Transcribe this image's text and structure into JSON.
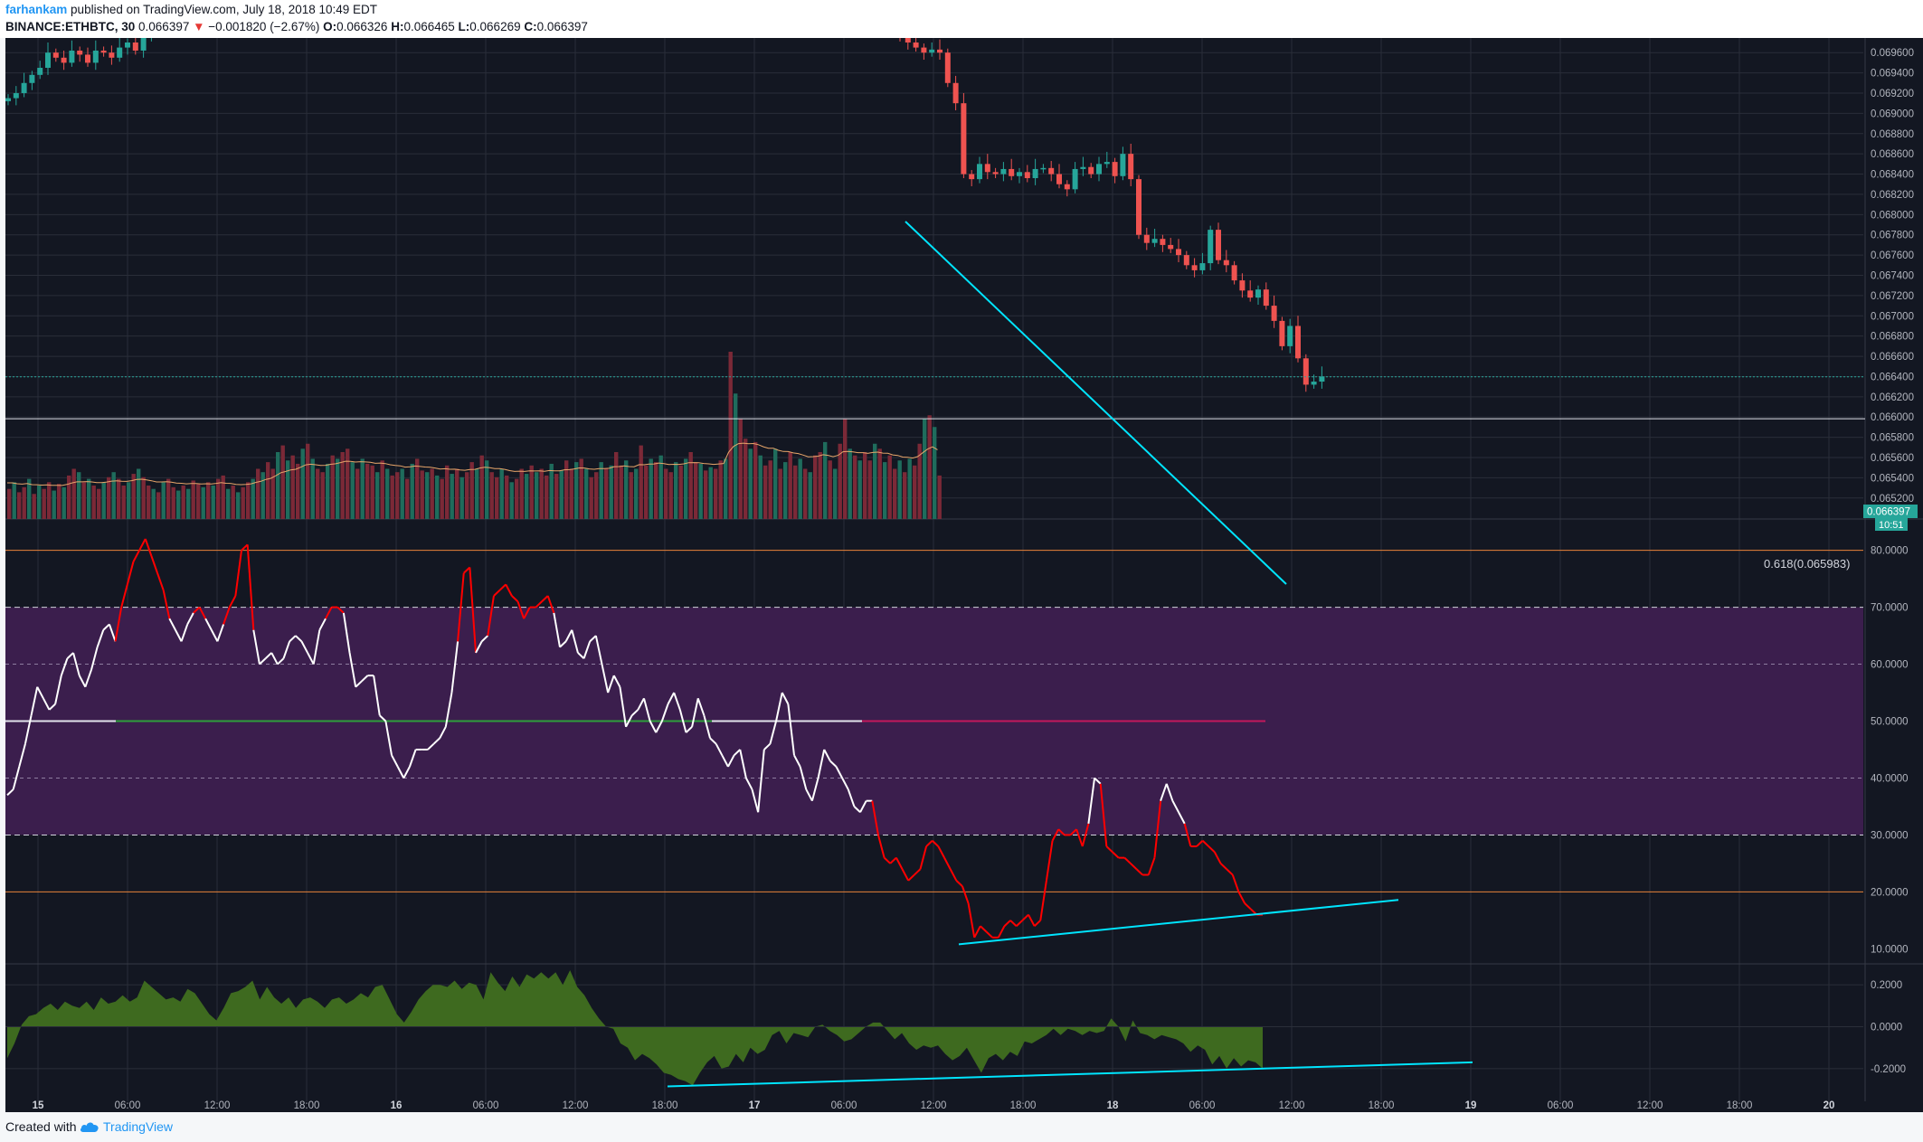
{
  "header": {
    "author": "farhankam",
    "published": "published on TradingView.com, July 18, 2018 10:49 EDT",
    "symbol": "BINANCE:ETHBTC, 30",
    "last": "0.066397",
    "change_arrow": "▼",
    "change": "−0.001820 (−2.67%)",
    "o_label": "O:",
    "o": "0.066326",
    "h_label": "H:",
    "h": "0.066465",
    "l_label": "L:",
    "l": "0.066269",
    "c_label": "C:",
    "c": "0.066397"
  },
  "footer": {
    "created_with": "Created with",
    "brand": "TradingView"
  },
  "colors": {
    "background": "#131722",
    "grid": "#2a2e39",
    "up": "#26a69a",
    "down": "#ef5350",
    "trendline": "#00e5ff",
    "rsi_band": "#3b1e4d",
    "osc_fill": "#3e6a1f",
    "rsi_line": "#ffffff",
    "rsi_hot": "#ff0000",
    "volume_ma": "#e8a66a"
  },
  "icons": {
    "brand_logo": "tradingview-cloud-icon"
  },
  "chart_data": [
    {
      "type": "candlestick",
      "pane": "price",
      "ylim": [
        0.0651,
        0.0697
      ],
      "yticks": [
        "0.069600",
        "0.069400",
        "0.069200",
        "0.069000",
        "0.068800",
        "0.068600",
        "0.068400",
        "0.068200",
        "0.068000",
        "0.067800",
        "0.067600",
        "0.067400",
        "0.067200",
        "0.067000",
        "0.066800",
        "0.066600",
        "0.066400",
        "0.066200",
        "0.066000",
        "0.065800",
        "0.065600",
        "0.065400",
        "0.065200"
      ],
      "xticks": [
        "15",
        "06:00",
        "12:00",
        "18:00",
        "16",
        "06:00",
        "12:00",
        "18:00",
        "17",
        "06:00",
        "12:00",
        "18:00",
        "18",
        "06:00",
        "12:00",
        "18:00",
        "19",
        "06:00",
        "12:00",
        "18:00",
        "20"
      ],
      "xticks_bold": [
        "15",
        "16",
        "17",
        "18",
        "19",
        "20"
      ],
      "last_price_label": "0.066397",
      "countdown_label": "10:51",
      "fib_label": "0.618(0.065983)",
      "fib_level": 0.065983,
      "early_close": [
        0.06915,
        0.0692,
        0.0693,
        0.06938,
        0.06945,
        0.0696,
        0.06955,
        0.0695,
        0.06962,
        0.06958,
        0.0695,
        0.06962,
        0.0696,
        0.06955,
        0.06965,
        0.0697,
        0.06962,
        0.06975,
        0.06985,
        0.0699
      ],
      "late_close": [
        0.06975,
        0.0697,
        0.06965,
        0.0696,
        0.06963,
        0.0696,
        0.0693,
        0.0691,
        0.0684,
        0.06835,
        0.0685,
        0.06842,
        0.0684,
        0.06845,
        0.06838,
        0.06842,
        0.06836,
        0.06845,
        0.06846,
        0.0684,
        0.0683,
        0.06825,
        0.06845,
        0.06847,
        0.0684,
        0.0685,
        0.06852,
        0.06838,
        0.0686,
        0.06835,
        0.0678,
        0.06772,
        0.06776,
        0.0677,
        0.06766,
        0.0676,
        0.0675,
        0.06745,
        0.06752,
        0.06785,
        0.06755,
        0.0675,
        0.06735,
        0.06725,
        0.06718,
        0.06726,
        0.0671,
        0.06695,
        0.0667,
        0.0669,
        0.06658,
        0.06632,
        0.06635,
        0.0664
      ]
    },
    {
      "type": "bar",
      "pane": "volume",
      "note_series": "volume with moving average",
      "values_relative": [
        0.18,
        0.22,
        0.16,
        0.19,
        0.24,
        0.15,
        0.2,
        0.18,
        0.22,
        0.17,
        0.21,
        0.19,
        0.26,
        0.3,
        0.28,
        0.22,
        0.24,
        0.2,
        0.18,
        0.22,
        0.25,
        0.28,
        0.24,
        0.2,
        0.22,
        0.27,
        0.3,
        0.25,
        0.2,
        0.18,
        0.16,
        0.22,
        0.24,
        0.19,
        0.17,
        0.2,
        0.18,
        0.23,
        0.21,
        0.19,
        0.22,
        0.2,
        0.24,
        0.26,
        0.18,
        0.2,
        0.16,
        0.19,
        0.22,
        0.24,
        0.3,
        0.28,
        0.34,
        0.3,
        0.4,
        0.44,
        0.35,
        0.38,
        0.33,
        0.42,
        0.45,
        0.36,
        0.3,
        0.28,
        0.33,
        0.38,
        0.36,
        0.4,
        0.42,
        0.34,
        0.3,
        0.36,
        0.33,
        0.32,
        0.28,
        0.35,
        0.3,
        0.26,
        0.28,
        0.3,
        0.24,
        0.33,
        0.36,
        0.29,
        0.28,
        0.3,
        0.26,
        0.24,
        0.32,
        0.27,
        0.3,
        0.25,
        0.28,
        0.34,
        0.3,
        0.38,
        0.35,
        0.28,
        0.25,
        0.3,
        0.26,
        0.22,
        0.24,
        0.3,
        0.27,
        0.32,
        0.28,
        0.3,
        0.26,
        0.33,
        0.27,
        0.29,
        0.35,
        0.3,
        0.34,
        0.36,
        0.3,
        0.25,
        0.28,
        0.34,
        0.3,
        0.32,
        0.4,
        0.32,
        0.35,
        0.28,
        0.3,
        0.44,
        0.32,
        0.36,
        0.34,
        0.38,
        0.3,
        0.28,
        0.34,
        0.32,
        0.36,
        0.4,
        0.34,
        0.33,
        0.29,
        0.31,
        0.3,
        0.35,
        0.36,
        1.0,
        0.75,
        0.6,
        0.48,
        0.42,
        0.46,
        0.38,
        0.32,
        0.35,
        0.42,
        0.3,
        0.34,
        0.4,
        0.32,
        0.36,
        0.3,
        0.28,
        0.38,
        0.4,
        0.46,
        0.35,
        0.3,
        0.45,
        0.6,
        0.42,
        0.38,
        0.35,
        0.4,
        0.35,
        0.45,
        0.42,
        0.34,
        0.38,
        0.3,
        0.35,
        0.28,
        0.36,
        0.32,
        0.45,
        0.6,
        0.62,
        0.55,
        0.26
      ]
    },
    {
      "type": "line",
      "pane": "rsi",
      "ylim": [
        8,
        82
      ],
      "yticks": [
        "80.0000",
        "70.0000",
        "60.0000",
        "50.0000",
        "40.0000",
        "30.0000",
        "20.0000",
        "10.0000"
      ],
      "bands": {
        "upper": 70,
        "lower": 30,
        "inner_upper": 60,
        "inner_lower": 40,
        "overbought": 80,
        "oversold": 20,
        "mid": 50
      },
      "values": [
        37,
        38,
        42,
        46,
        51,
        56,
        54,
        52,
        53,
        58,
        61,
        62,
        58,
        56,
        59,
        63,
        66,
        67,
        64,
        70,
        74,
        78,
        80,
        82,
        79,
        76,
        73,
        68,
        66,
        64,
        67,
        69,
        70,
        68,
        66,
        64,
        67,
        70,
        72,
        80,
        81,
        66,
        60,
        61,
        62,
        60,
        61,
        64,
        65,
        64,
        62,
        60,
        66,
        68,
        70,
        70,
        69,
        62,
        56,
        57,
        58,
        58,
        51,
        50,
        44,
        42,
        40,
        42,
        45,
        45,
        45,
        46,
        47,
        49,
        55,
        64,
        76,
        77,
        62,
        64,
        65,
        72,
        73,
        74,
        72,
        71,
        68,
        70,
        70,
        71,
        72,
        69,
        63,
        64,
        66,
        62,
        61,
        64,
        65,
        60,
        55,
        58,
        56,
        49,
        51,
        52,
        54,
        50,
        48,
        50,
        53,
        55,
        52,
        48,
        49,
        54,
        51,
        47,
        46,
        44,
        42,
        44,
        45,
        40,
        38,
        34,
        45,
        46,
        50,
        55,
        53,
        44,
        42,
        38,
        36,
        40,
        45,
        43,
        42,
        40,
        38,
        35,
        34,
        36,
        36,
        30,
        26,
        25,
        26,
        24,
        22,
        23,
        24,
        28,
        29,
        28,
        26,
        24,
        22,
        21,
        18,
        12,
        14,
        13,
        12,
        12,
        14,
        15,
        14,
        15,
        16,
        14,
        15,
        22,
        29,
        31,
        30,
        30,
        31,
        28,
        32,
        40,
        39,
        28,
        27,
        26,
        26,
        25,
        24,
        23,
        23,
        26,
        36,
        39,
        36,
        34,
        32,
        28,
        28,
        29,
        28,
        27,
        25,
        24,
        23,
        20,
        18,
        17,
        16,
        16
      ]
    },
    {
      "type": "area",
      "pane": "oscillator",
      "ylim": [
        -0.3,
        0.3
      ],
      "yticks": [
        "0.2000",
        "0.0000",
        "-0.2000"
      ],
      "values": [
        -0.15,
        -0.08,
        0.01,
        0.05,
        0.06,
        0.09,
        0.11,
        0.08,
        0.12,
        0.1,
        0.09,
        0.12,
        0.08,
        0.14,
        0.11,
        0.12,
        0.15,
        0.12,
        0.14,
        0.22,
        0.19,
        0.16,
        0.13,
        0.14,
        0.12,
        0.18,
        0.16,
        0.11,
        0.06,
        0.03,
        0.09,
        0.16,
        0.17,
        0.19,
        0.22,
        0.13,
        0.19,
        0.14,
        0.11,
        0.14,
        0.09,
        0.13,
        0.14,
        0.12,
        0.09,
        0.13,
        0.14,
        0.11,
        0.13,
        0.16,
        0.14,
        0.19,
        0.2,
        0.13,
        0.06,
        0.02,
        0.07,
        0.13,
        0.17,
        0.2,
        0.2,
        0.19,
        0.22,
        0.18,
        0.21,
        0.2,
        0.13,
        0.26,
        0.21,
        0.17,
        0.24,
        0.19,
        0.25,
        0.23,
        0.26,
        0.23,
        0.26,
        0.2,
        0.27,
        0.19,
        0.15,
        0.09,
        0.04,
        0.0,
        -0.01,
        -0.08,
        -0.1,
        -0.16,
        -0.13,
        -0.15,
        -0.18,
        -0.22,
        -0.23,
        -0.25,
        -0.26,
        -0.28,
        -0.22,
        -0.17,
        -0.14,
        -0.2,
        -0.19,
        -0.13,
        -0.17,
        -0.1,
        -0.13,
        -0.11,
        -0.04,
        -0.02,
        -0.08,
        -0.03,
        -0.04,
        -0.05,
        -0.0,
        0.01,
        -0.02,
        -0.04,
        -0.07,
        -0.06,
        -0.03,
        -0.0,
        0.02,
        0.02,
        -0.02,
        -0.06,
        -0.03,
        -0.08,
        -0.11,
        -0.09,
        -0.1,
        -0.09,
        -0.13,
        -0.16,
        -0.14,
        -0.1,
        -0.16,
        -0.22,
        -0.15,
        -0.13,
        -0.16,
        -0.12,
        -0.14,
        -0.07,
        -0.08,
        -0.06,
        -0.04,
        -0.01,
        -0.04,
        -0.01,
        -0.02,
        -0.04,
        -0.02,
        -0.03,
        -0.02,
        0.04,
        0.0,
        -0.07,
        0.03,
        -0.03,
        -0.04,
        -0.06,
        -0.04,
        -0.05,
        -0.06,
        -0.08,
        -0.12,
        -0.09,
        -0.11,
        -0.18,
        -0.14,
        -0.2,
        -0.15,
        -0.19,
        -0.16,
        -0.17,
        -0.2
      ]
    }
  ]
}
